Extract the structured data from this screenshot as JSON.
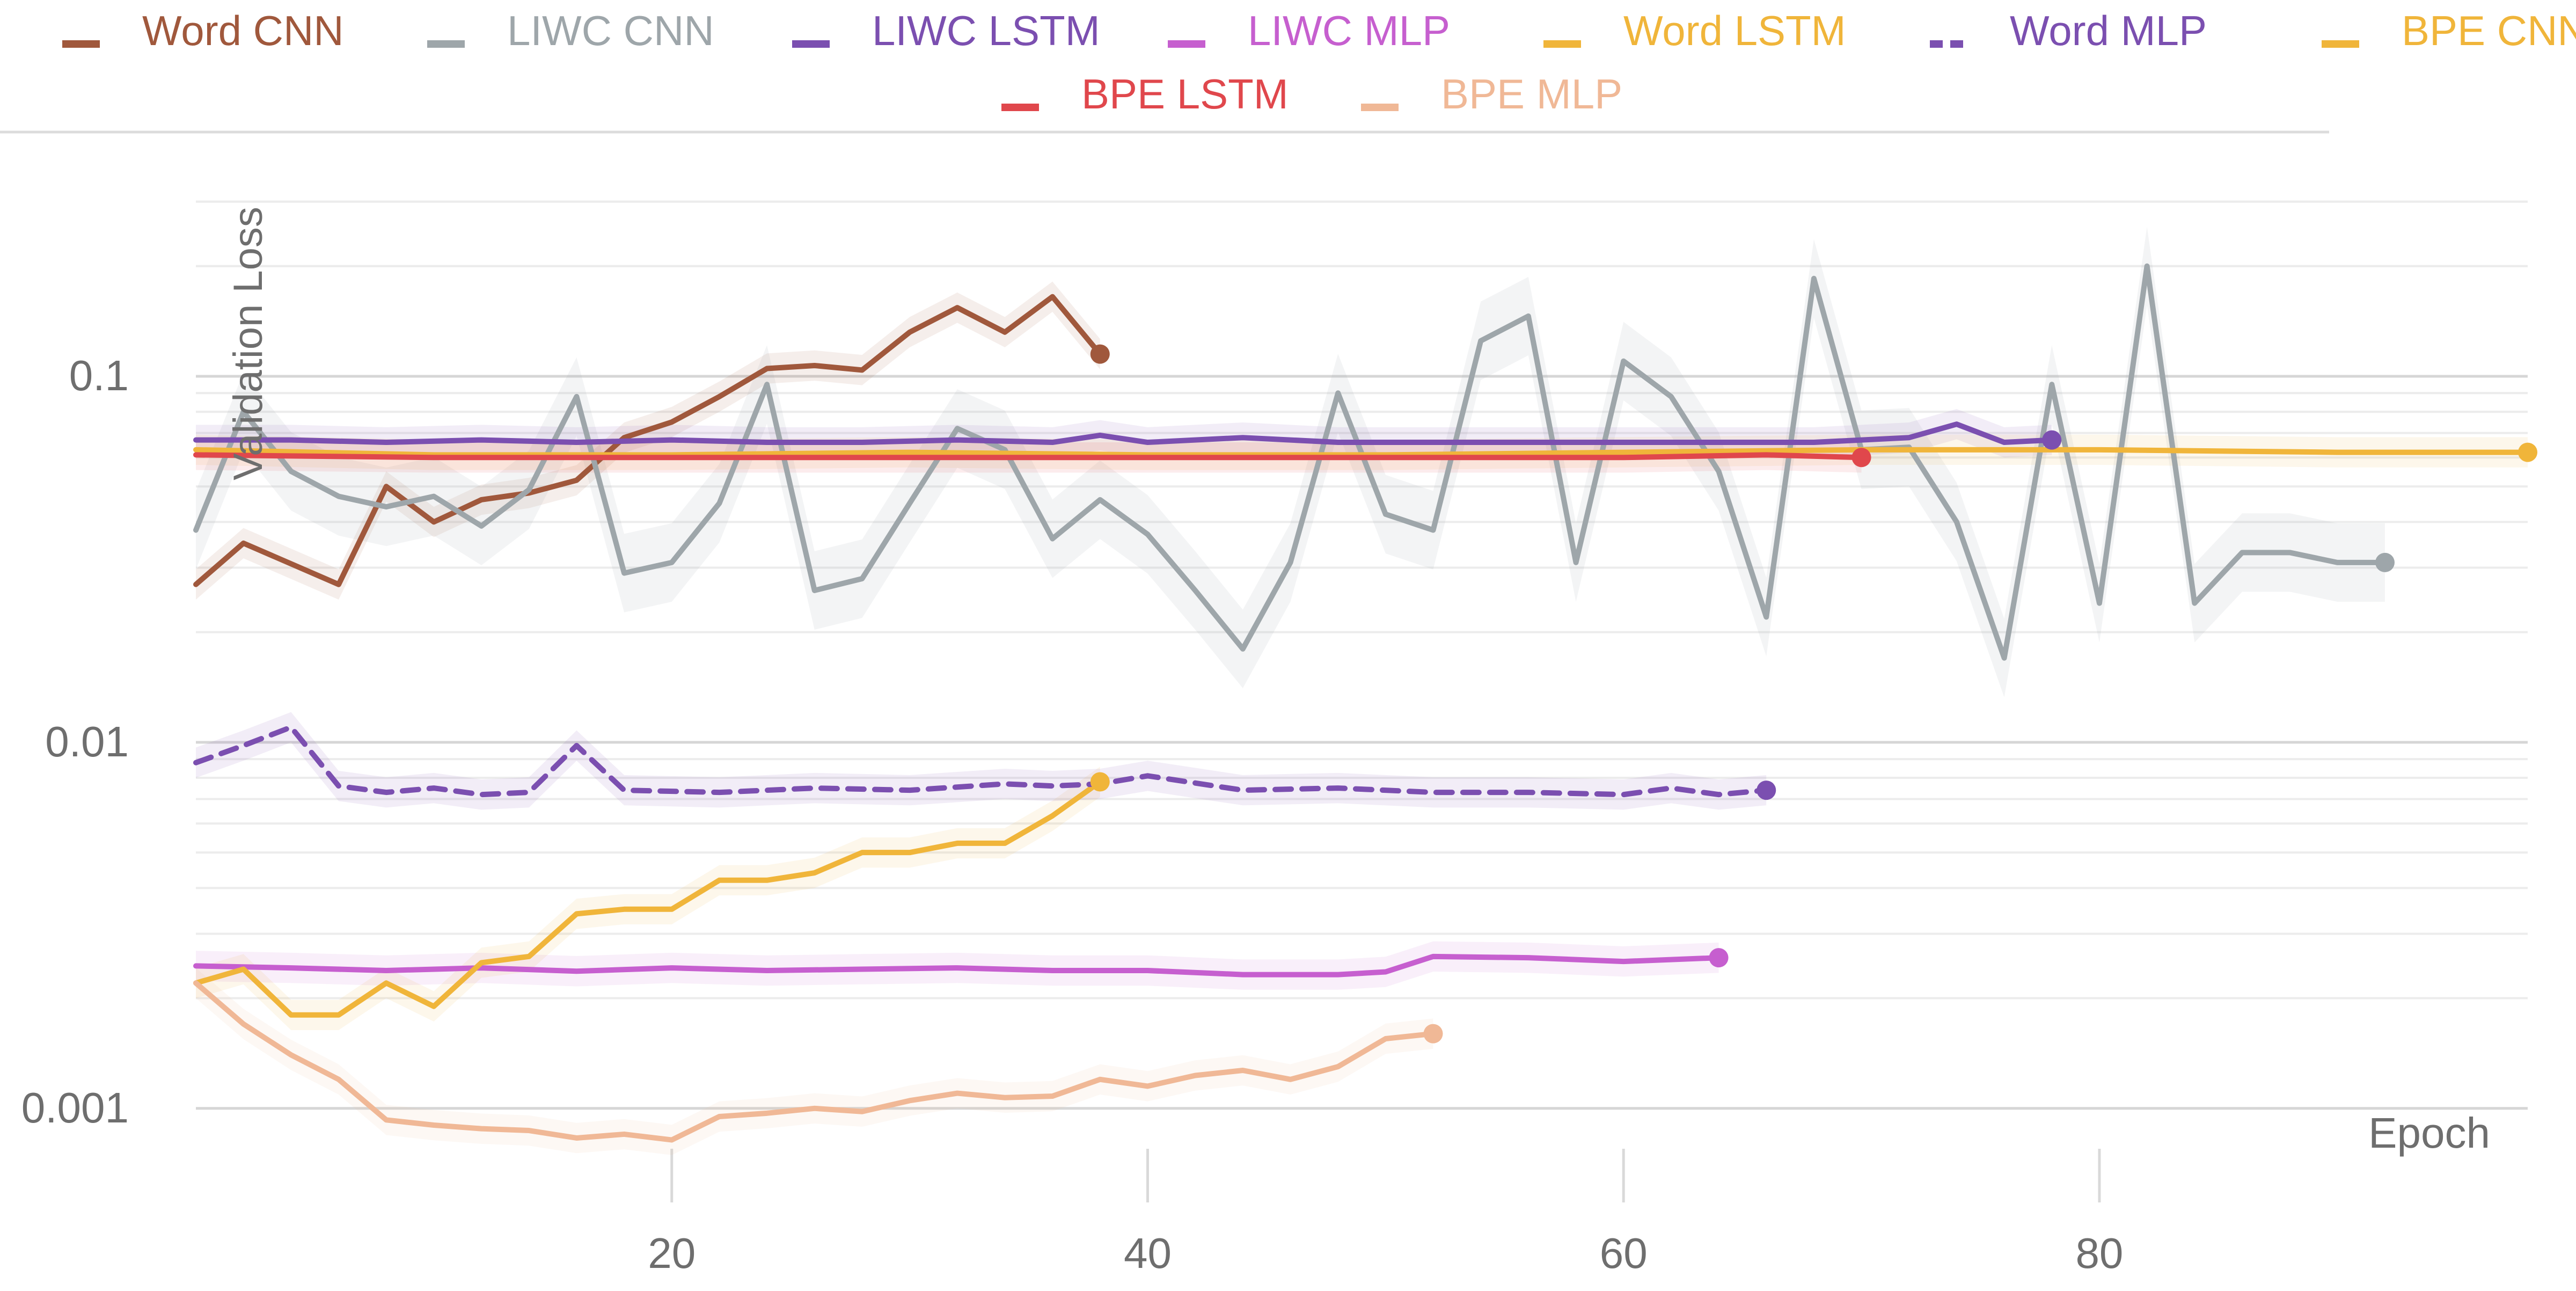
{
  "chart_data": {
    "type": "line",
    "xlabel": "Epoch",
    "ylabel": "Validation Loss",
    "y_scale": "log",
    "xlim": [
      0,
      98
    ],
    "ylim": [
      0.00075,
      0.35
    ],
    "x_ticks": [
      20,
      40,
      60,
      80
    ],
    "y_ticks": [
      0.001,
      0.01,
      0.1
    ],
    "y_tick_labels": [
      "0.001",
      "0.01",
      "0.1"
    ],
    "grid": true,
    "legend_position": "top",
    "series": [
      {
        "name": "Word CNN",
        "color": "#a0583c",
        "dashed": false,
        "x": [
          0,
          2,
          6,
          8,
          10,
          12,
          14,
          16,
          18,
          20,
          22,
          24,
          26,
          28,
          30,
          32,
          34,
          36,
          38
        ],
        "y": [
          0.027,
          0.035,
          0.027,
          0.05,
          0.04,
          0.046,
          0.048,
          0.052,
          0.068,
          0.075,
          0.088,
          0.105,
          0.107,
          0.104,
          0.132,
          0.154,
          0.132,
          0.165,
          0.115
        ]
      },
      {
        "name": "LIWC CNN",
        "color": "#9ea6aa",
        "dashed": false,
        "x": [
          0,
          2,
          4,
          6,
          8,
          10,
          12,
          14,
          16,
          18,
          20,
          22,
          24,
          26,
          28,
          30,
          32,
          34,
          36,
          38,
          40,
          42,
          44,
          46,
          48,
          50,
          52,
          54,
          56,
          58,
          60,
          62,
          64,
          66,
          68,
          70,
          72,
          74,
          76,
          78,
          80,
          82,
          84,
          86,
          88,
          90,
          92
        ],
        "y": [
          0.038,
          0.08,
          0.055,
          0.047,
          0.044,
          0.047,
          0.039,
          0.049,
          0.088,
          0.029,
          0.031,
          0.045,
          0.095,
          0.026,
          0.028,
          0.045,
          0.072,
          0.063,
          0.036,
          0.046,
          0.037,
          0.026,
          0.018,
          0.031,
          0.09,
          0.042,
          0.038,
          0.125,
          0.146,
          0.031,
          0.11,
          0.088,
          0.055,
          0.022,
          0.185,
          0.063,
          0.064,
          0.04,
          0.017,
          0.095,
          0.024,
          0.2,
          0.024,
          0.033,
          0.033,
          0.031,
          0.031
        ]
      },
      {
        "name": "LIWC LSTM",
        "color": "#7b4fb0",
        "dashed": false,
        "x": [
          0,
          4,
          8,
          12,
          16,
          20,
          24,
          28,
          32,
          36,
          38,
          40,
          44,
          48,
          52,
          56,
          60,
          64,
          68,
          72,
          74,
          76,
          78
        ],
        "y": [
          0.067,
          0.067,
          0.066,
          0.067,
          0.066,
          0.067,
          0.066,
          0.066,
          0.067,
          0.066,
          0.069,
          0.066,
          0.068,
          0.066,
          0.066,
          0.066,
          0.066,
          0.066,
          0.066,
          0.068,
          0.074,
          0.066,
          0.067
        ]
      },
      {
        "name": "LIWC MLP",
        "color": "#c65fcf",
        "dashed": false,
        "x": [
          0,
          4,
          8,
          12,
          16,
          20,
          24,
          28,
          32,
          36,
          40,
          44,
          48,
          50,
          52,
          56,
          60,
          64
        ],
        "y": [
          0.00245,
          0.00242,
          0.00238,
          0.00242,
          0.00237,
          0.00242,
          0.00238,
          0.0024,
          0.00242,
          0.00238,
          0.00238,
          0.00232,
          0.00232,
          0.00236,
          0.0026,
          0.00258,
          0.00252,
          0.00258
        ]
      },
      {
        "name": "Word LSTM",
        "color": "#f0b53a",
        "dashed": false,
        "x": [
          0,
          2,
          4,
          6,
          8,
          10,
          12,
          14,
          16,
          18,
          20,
          22,
          24,
          26,
          28,
          30,
          32,
          34,
          36,
          38
        ],
        "y": [
          0.0022,
          0.0024,
          0.0018,
          0.0018,
          0.0022,
          0.0019,
          0.0025,
          0.0026,
          0.0034,
          0.0035,
          0.0035,
          0.0042,
          0.0042,
          0.0044,
          0.005,
          0.005,
          0.0053,
          0.0053,
          0.0063,
          0.0078
        ]
      },
      {
        "name": "Word MLP",
        "color": "#7b4fb0",
        "dashed": true,
        "x": [
          0,
          2,
          4,
          6,
          8,
          10,
          12,
          14,
          16,
          18,
          22,
          26,
          30,
          34,
          36,
          38,
          40,
          44,
          48,
          52,
          56,
          60,
          62,
          64,
          66
        ],
        "y": [
          0.0088,
          0.0098,
          0.011,
          0.0076,
          0.0073,
          0.0075,
          0.0072,
          0.0073,
          0.0098,
          0.0074,
          0.0073,
          0.0075,
          0.0074,
          0.0077,
          0.0076,
          0.0077,
          0.0081,
          0.0074,
          0.0075,
          0.0073,
          0.0073,
          0.0072,
          0.0075,
          0.0072,
          0.0074
        ]
      },
      {
        "name": "BPE CNN",
        "color": "#f0b53a",
        "dashed": false,
        "x": [
          0,
          10,
          20,
          30,
          40,
          50,
          60,
          70,
          80,
          90,
          98
        ],
        "y": [
          0.063,
          0.061,
          0.061,
          0.062,
          0.061,
          0.061,
          0.062,
          0.063,
          0.063,
          0.062,
          0.062
        ]
      },
      {
        "name": "BPE LSTM",
        "color": "#e0474c",
        "dashed": false,
        "x": [
          0,
          10,
          20,
          30,
          40,
          50,
          60,
          66,
          70
        ],
        "y": [
          0.061,
          0.06,
          0.06,
          0.06,
          0.06,
          0.06,
          0.06,
          0.061,
          0.06
        ]
      },
      {
        "name": "BPE MLP",
        "color": "#f0b896",
        "dashed": false,
        "x": [
          0,
          2,
          4,
          6,
          8,
          10,
          12,
          14,
          16,
          18,
          20,
          22,
          24,
          26,
          28,
          30,
          32,
          34,
          36,
          38,
          40,
          42,
          44,
          46,
          48,
          50,
          52
        ],
        "y": [
          0.0022,
          0.0017,
          0.0014,
          0.0012,
          0.00093,
          0.0009,
          0.00088,
          0.00087,
          0.00083,
          0.00085,
          0.00082,
          0.00095,
          0.00097,
          0.001,
          0.00098,
          0.00105,
          0.0011,
          0.00107,
          0.00108,
          0.0012,
          0.00115,
          0.00123,
          0.00127,
          0.0012,
          0.0013,
          0.00155,
          0.0016
        ]
      }
    ]
  }
}
